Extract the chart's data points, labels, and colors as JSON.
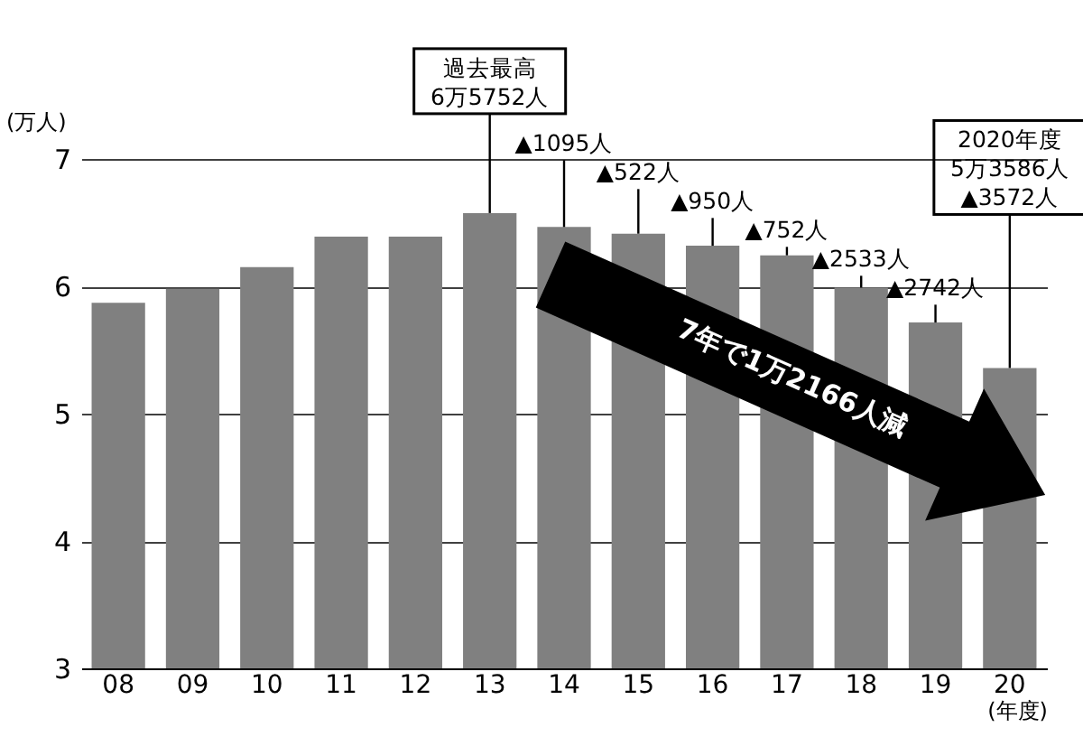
{
  "chart_data": {
    "type": "bar",
    "xlabel": "(年度)",
    "ylabel": "(万人)",
    "categories": [
      "08",
      "09",
      "10",
      "11",
      "12",
      "13",
      "14",
      "15",
      "16",
      "17",
      "18",
      "19",
      "20"
    ],
    "values": [
      5.87,
      5.98,
      6.15,
      6.39,
      6.39,
      6.5752,
      6.4657,
      6.4135,
      6.3185,
      6.2433,
      5.99,
      5.7158,
      5.3586
    ],
    "color": "#808080",
    "ylim": [
      3,
      7
    ],
    "yticks": [
      3,
      4,
      5,
      6,
      7
    ],
    "grid": "y",
    "annotations": [
      "過去最高",
      {
        "text": "6万5752人",
        "x": "13",
        "y": 6.5752
      },
      {
        "text": "▲1095人",
        "x": "14",
        "y": 6.4657
      },
      {
        "text": "▲522人",
        "x": "15",
        "y": 6.4135
      },
      {
        "text": "▲950人",
        "x": "16",
        "y": 6.3185
      },
      {
        "text": "▲752人",
        "x": "17",
        "y": 6.2433
      },
      {
        "text": "▲2533人",
        "x": "18",
        "y": 5.99
      },
      {
        "text": "▲2742人",
        "x": "19",
        "y": 5.7158
      },
      "2020年度",
      "5万3586人",
      {
        "text": "▲3572人",
        "x": "20",
        "y": 5.3586
      },
      "7年で1万2166人減"
    ]
  }
}
